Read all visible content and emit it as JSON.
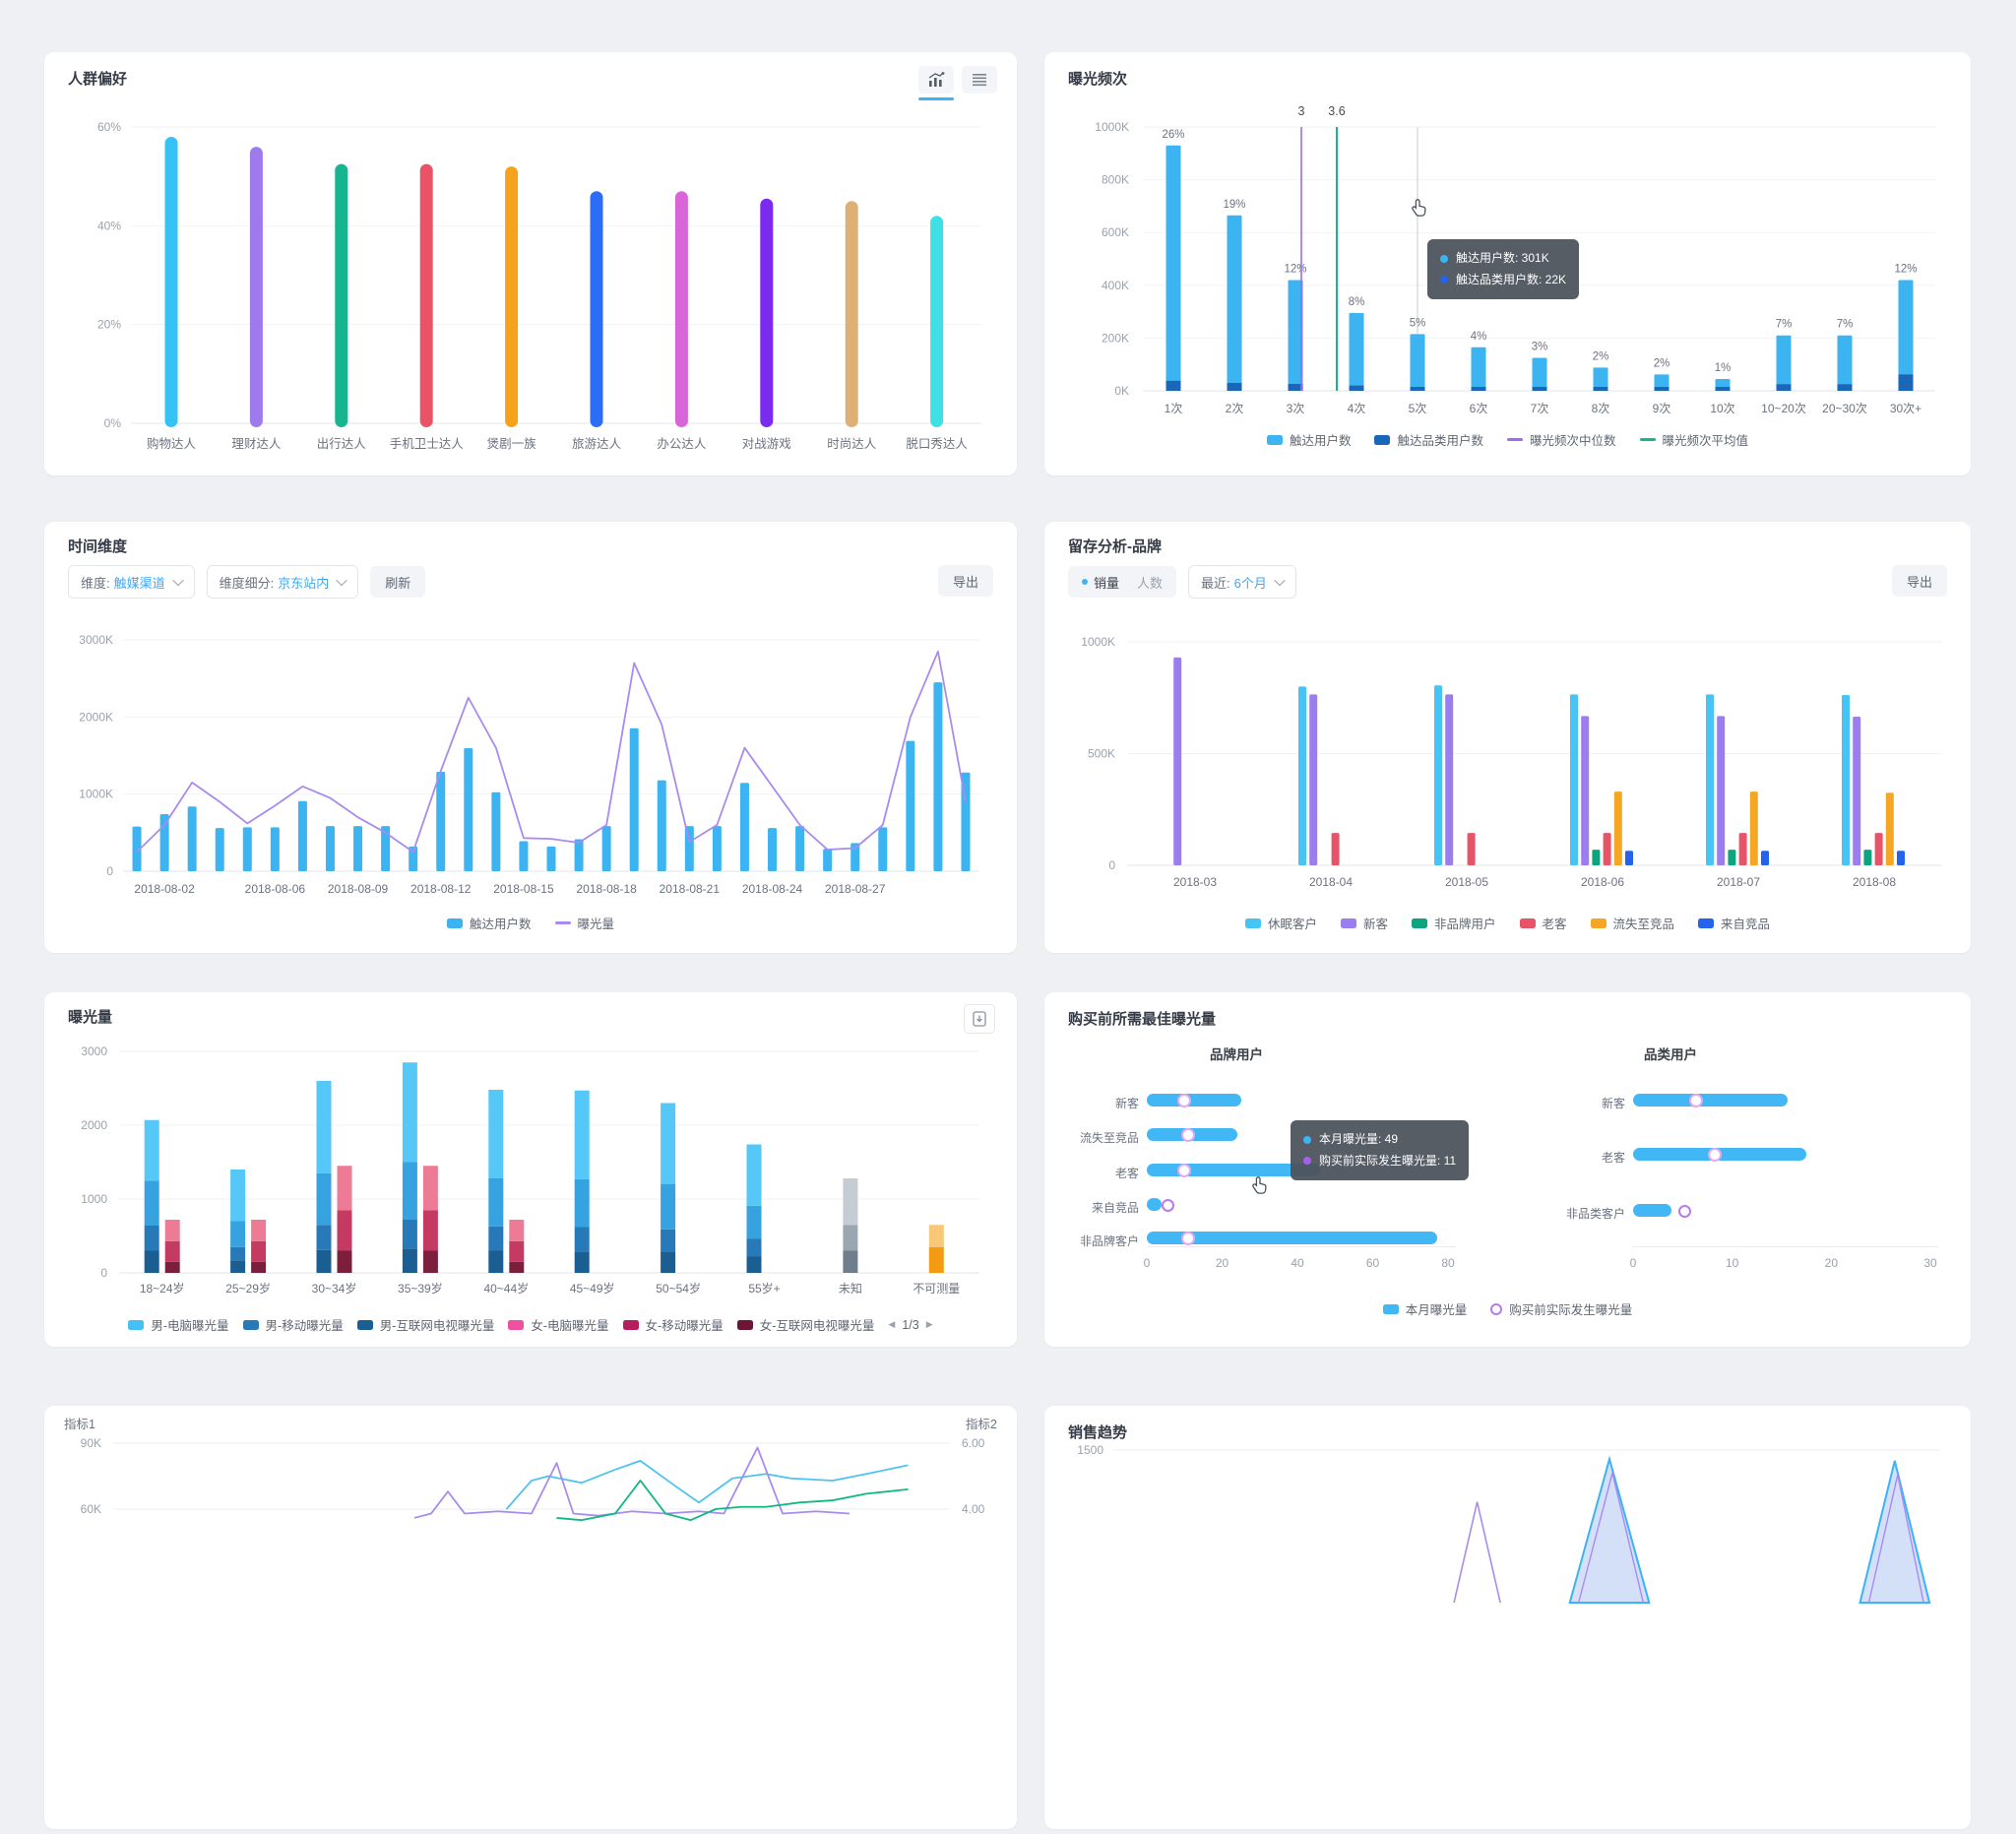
{
  "window": {
    "background": "#eef0f4",
    "accent": "#3db4f2"
  },
  "cards": {
    "audience": {
      "title": "人群偏好",
      "toolbar": {
        "chart_view": "bar-chart-icon",
        "list_view": "list-icon",
        "active_view": "chart"
      },
      "chart_data": {
        "type": "bar",
        "title": "人群偏好",
        "categories": [
          "购物达人",
          "理财达人",
          "出行达人",
          "手机卫士达人",
          "煲剧一族",
          "旅游达人",
          "办公达人",
          "对战游戏",
          "时尚达人",
          "脱口秀达人"
        ],
        "values": [
          58,
          56,
          52.5,
          52.5,
          52,
          47,
          47,
          45.5,
          45,
          42
        ],
        "bar_colors": [
          "#35c3f5",
          "#9d7bed",
          "#16b58f",
          "#ea5365",
          "#f5a31d",
          "#2b6ef5",
          "#d966d9",
          "#7b2bf0",
          "#ddb077",
          "#3ee0e6"
        ],
        "yticks": [
          {
            "v": 60,
            "label": "60%"
          },
          {
            "v": 40,
            "label": "40%"
          },
          {
            "v": 20,
            "label": "20%"
          },
          {
            "v": 0,
            "label": "0%"
          }
        ],
        "ylim": [
          0,
          60
        ]
      }
    },
    "frequency": {
      "title": "曝光频次",
      "chart_data": {
        "type": "bar",
        "title": "曝光频次",
        "categories": [
          "1次",
          "2次",
          "3次",
          "4次",
          "5次",
          "6次",
          "7次",
          "8次",
          "9次",
          "10次",
          "10~20次",
          "20~30次",
          "30次+"
        ],
        "series": [
          {
            "name": "触达用户数",
            "color": "#3db4f2",
            "values": [
              930,
              665,
              420,
              295,
              215,
              165,
              125,
              88,
              62,
              45,
              210,
              210,
              420
            ]
          },
          {
            "name": "触达品类用户数",
            "color": "#1a66b8",
            "values": [
              38,
              30,
              26,
              20,
              15,
              13,
              10,
              8,
              6,
              5,
              25,
              25,
              62
            ]
          }
        ],
        "bar_labels": [
          "26%",
          "19%",
          "12%",
          "8%",
          "5%",
          "4%",
          "3%",
          "2%",
          "2%",
          "1%",
          "7%",
          "7%",
          "12%"
        ],
        "median_line": {
          "name": "曝光频次中位数",
          "label": "3",
          "color": "#9b6df2"
        },
        "average_line": {
          "name": "曝光频次平均值",
          "label": "3.6",
          "color": "#10b98c"
        },
        "yticks": [
          {
            "v": 1000,
            "label": "1000K"
          },
          {
            "v": 800,
            "label": "800K"
          },
          {
            "v": 600,
            "label": "600K"
          },
          {
            "v": 400,
            "label": "400K"
          },
          {
            "v": 200,
            "label": "200K"
          },
          {
            "v": 0,
            "label": "0K"
          }
        ],
        "ylim": [
          0,
          1000
        ],
        "legend_position": "bottom"
      },
      "tooltip": {
        "rows": [
          {
            "dot_color": "#3db4f2",
            "text": "触达用户数: 301K"
          },
          {
            "dot_color": "#2563eb",
            "text": "触达品类用户数: 22K"
          }
        ]
      }
    },
    "time_dimension": {
      "title": "时间维度",
      "filters": {
        "dimension_label": "维度:",
        "dimension_value": "触媒渠道",
        "segment_label": "维度细分:",
        "segment_value": "京东站内",
        "refresh_label": "刷新",
        "export_label": "导出"
      },
      "chart_data": {
        "type": "bar+line",
        "title": "时间维度",
        "x_tick_labels": [
          "2018-08-02",
          "2018-08-06",
          "2018-08-09",
          "2018-08-12",
          "2018-08-15",
          "2018-08-18",
          "2018-08-21",
          "2018-08-24",
          "2018-08-27"
        ],
        "x_tick_positions": [
          1,
          5,
          8,
          11,
          14,
          17,
          20,
          23,
          26
        ],
        "bars": {
          "name": "触达用户数",
          "color": "#3db4f2",
          "values": [
            580,
            740,
            840,
            560,
            570,
            570,
            910,
            585,
            585,
            585,
            320,
            1290,
            1595,
            1025,
            390,
            320,
            415,
            585,
            1855,
            1180,
            585,
            585,
            1145,
            560,
            585,
            290,
            365,
            570,
            1690,
            2450,
            1280
          ]
        },
        "line": {
          "name": "曝光量",
          "color": "#a98bef",
          "values": [
            250,
            600,
            1150,
            900,
            620,
            850,
            1100,
            950,
            700,
            500,
            250,
            1300,
            2250,
            1600,
            430,
            420,
            370,
            600,
            2700,
            1900,
            380,
            600,
            1600,
            1100,
            600,
            280,
            300,
            600,
            2000,
            2850,
            900
          ]
        },
        "yticks": [
          {
            "v": 3000,
            "label": "3000K"
          },
          {
            "v": 2000,
            "label": "2000K"
          },
          {
            "v": 1000,
            "label": "1000K"
          },
          {
            "v": 0,
            "label": "0"
          }
        ],
        "ylim": [
          0,
          3000
        ]
      }
    },
    "retention": {
      "title": "留存分析-品牌",
      "controls": {
        "metric_options": [
          "销量",
          "人数"
        ],
        "metric_selected": "销量",
        "range_label": "最近:",
        "range_value": "6个月",
        "export_label": "导出"
      },
      "chart_data": {
        "type": "grouped-bar",
        "title": "留存分析-品牌",
        "categories": [
          "2018-03",
          "2018-04",
          "2018-05",
          "2018-06",
          "2018-07",
          "2018-08"
        ],
        "series": [
          {
            "name": "休眠客户",
            "color": "#45c4f5",
            "values": [
              0,
              800,
              805,
              765,
              765,
              762
            ]
          },
          {
            "name": "新客",
            "color": "#9b7df0",
            "values": [
              930,
              765,
              765,
              668,
              668,
              665
            ]
          },
          {
            "name": "非品牌用户",
            "color": "#0ea47e",
            "values": [
              0,
              0,
              0,
              70,
              70,
              70
            ]
          },
          {
            "name": "老客",
            "color": "#e85467",
            "values": [
              0,
              145,
              145,
              145,
              145,
              145
            ]
          },
          {
            "name": "流失至竞品",
            "color": "#f5a623",
            "values": [
              0,
              0,
              0,
              330,
              330,
              325
            ]
          },
          {
            "name": "来自竞品",
            "color": "#2563eb",
            "values": [
              0,
              0,
              0,
              65,
              65,
              65
            ]
          }
        ],
        "yticks": [
          {
            "v": 1000,
            "label": "1000K"
          },
          {
            "v": 500,
            "label": "500K"
          },
          {
            "v": 0,
            "label": "0"
          }
        ],
        "ylim": [
          0,
          1000
        ]
      }
    },
    "exposure": {
      "title": "曝光量",
      "toolbar": {
        "export_icon": "download-icon"
      },
      "chart_data": {
        "type": "stacked-bar",
        "title": "曝光量",
        "yticks": [
          {
            "v": 3000,
            "label": "3000"
          },
          {
            "v": 2000,
            "label": "2000"
          },
          {
            "v": 1000,
            "label": "1000"
          },
          {
            "v": 0,
            "label": "0"
          }
        ],
        "ylim": [
          0,
          3000
        ],
        "male_colors": [
          "#1b5e92",
          "#2779b8",
          "#36a3e0",
          "#55c8f7"
        ],
        "female_colors": [
          "#7c1f3d",
          "#c43a62",
          "#ee7b95"
        ],
        "gray_colors": [
          "#6f7d8c",
          "#9aa7b1",
          "#c5ccd3"
        ],
        "orange_colors": [
          "#f39c12",
          "#f8c878"
        ],
        "groups": [
          {
            "label": "18~24岁",
            "male": [
              300,
              340,
              610,
              820
            ],
            "female": [
              150,
              280,
              290
            ]
          },
          {
            "label": "25~29岁",
            "male": [
              170,
              180,
              350,
              700
            ],
            "female": [
              150,
              280,
              290
            ]
          },
          {
            "label": "30~34岁",
            "male": [
              310,
              340,
              700,
              1250
            ],
            "female": [
              300,
              550,
              600
            ]
          },
          {
            "label": "35~39岁",
            "male": [
              330,
              390,
              780,
              1350
            ],
            "female": [
              300,
              550,
              600
            ]
          },
          {
            "label": "40~44岁",
            "male": [
              300,
              330,
              650,
              1200
            ],
            "female": [
              150,
              280,
              290
            ]
          },
          {
            "label": "45~49岁",
            "male": [
              290,
              330,
              650,
              1200
            ],
            "female": []
          },
          {
            "label": "50~54岁",
            "male": [
              280,
              310,
              610,
              1100
            ],
            "female": []
          },
          {
            "label": "55岁+",
            "male": [
              220,
              240,
              450,
              830
            ],
            "female": []
          },
          {
            "label": "未知",
            "special": "gray",
            "segments": [
              300,
              350,
              630
            ]
          },
          {
            "label": "不可测量",
            "special": "orange",
            "segments": [
              350,
              300
            ]
          }
        ]
      },
      "legend": {
        "items": [
          {
            "label": "男-电脑曝光量",
            "color": "#45c0f5"
          },
          {
            "label": "男-移动曝光量",
            "color": "#2779b8"
          },
          {
            "label": "男-互联网电视曝光量",
            "color": "#1b5e92"
          },
          {
            "label": "女-电脑曝光量",
            "color": "#f0509e"
          },
          {
            "label": "女-移动曝光量",
            "color": "#b51d5e"
          },
          {
            "label": "女-互联网电视曝光量",
            "color": "#6e1436"
          }
        ],
        "pagination": {
          "prev": "◀",
          "label": "1/3",
          "next": "▶"
        }
      }
    },
    "best_exposure": {
      "title": "购买前所需最佳曝光量",
      "chart_data": {
        "type": "bar",
        "title": "购买前所需最佳曝光量",
        "panels": [
          {
            "title": "品牌用户",
            "xmax": 80,
            "xticks": [
              "0",
              "20",
              "40",
              "60",
              "80"
            ],
            "rows": [
              {
                "label": "新客",
                "bar": 25,
                "dot": 10
              },
              {
                "label": "流失至竞品",
                "bar": 24,
                "dot": 11
              },
              {
                "label": "老客",
                "bar": 46,
                "dot": 10,
                "track": true
              },
              {
                "label": "来自竞品",
                "bar": 4,
                "ring": 5.5
              },
              {
                "label": "非品牌客户",
                "bar": 77,
                "dot": 11
              }
            ]
          },
          {
            "title": "品类用户",
            "xmax": 30,
            "xticks": [
              "0",
              "10",
              "20",
              "30"
            ],
            "rows": [
              {
                "label": "新客",
                "bar": 15.6,
                "dot": 6.4
              },
              {
                "label": "老客",
                "bar": 17.5,
                "dot": 8.2
              },
              {
                "label": "非品类客户",
                "bar": 3.9,
                "ring": 5.2
              }
            ]
          }
        ]
      },
      "tooltip": {
        "rows": [
          {
            "dot_color": "#3db4f2",
            "text": "本月曝光量: 49"
          },
          {
            "dot_color": "#a55ff0",
            "text": "购买前实际发生曝光量: 11"
          }
        ]
      },
      "legend": {
        "bar_label": "本月曝光量",
        "bar_color": "#41b8f5",
        "ring_label": "购买前实际发生曝光量",
        "ring_color": "#b87af0"
      }
    },
    "metrics": {
      "title_left": "指标1",
      "title_right": "指标2",
      "chart_data": {
        "type": "line",
        "left_yticks": [
          {
            "v": 90,
            "label": "90K"
          },
          {
            "v": 60,
            "label": "60K"
          }
        ],
        "right_yticks": [
          {
            "v": 6,
            "label": "6.00"
          },
          {
            "v": 4,
            "label": "4.00"
          }
        ],
        "view": {
          "top_value": 90,
          "bottom_value": 60
        },
        "series": [
          {
            "name": "metric-blue",
            "color": "#4cc3f0",
            "points": [
              [
                0.47,
                60
              ],
              [
                0.5,
                73
              ],
              [
                0.52,
                75
              ],
              [
                0.56,
                72
              ],
              [
                0.6,
                78
              ],
              [
                0.63,
                82
              ],
              [
                0.67,
                71
              ],
              [
                0.7,
                63
              ],
              [
                0.74,
                74
              ],
              [
                0.78,
                76
              ],
              [
                0.81,
                74
              ],
              [
                0.86,
                73
              ],
              [
                0.9,
                76
              ],
              [
                0.95,
                80
              ]
            ]
          },
          {
            "name": "metric-purple",
            "color": "#a98bef",
            "points": [
              [
                0.36,
                56
              ],
              [
                0.38,
                58
              ],
              [
                0.4,
                68
              ],
              [
                0.42,
                58
              ],
              [
                0.46,
                59
              ],
              [
                0.5,
                58
              ],
              [
                0.53,
                81
              ],
              [
                0.55,
                58
              ],
              [
                0.58,
                57
              ],
              [
                0.62,
                59
              ],
              [
                0.66,
                58
              ],
              [
                0.7,
                59
              ],
              [
                0.73,
                58
              ],
              [
                0.77,
                88
              ],
              [
                0.8,
                58
              ],
              [
                0.84,
                59
              ],
              [
                0.88,
                58
              ]
            ]
          },
          {
            "name": "metric-green",
            "color": "#10b981",
            "points": [
              [
                0.53,
                56
              ],
              [
                0.56,
                55
              ],
              [
                0.6,
                58
              ],
              [
                0.63,
                73
              ],
              [
                0.66,
                58
              ],
              [
                0.69,
                55
              ],
              [
                0.72,
                60
              ],
              [
                0.75,
                61
              ],
              [
                0.78,
                61
              ],
              [
                0.82,
                63
              ],
              [
                0.86,
                64
              ],
              [
                0.9,
                67
              ],
              [
                0.95,
                69
              ]
            ]
          }
        ]
      }
    },
    "sales_trend": {
      "title": "销售趋势",
      "chart_data": {
        "type": "area",
        "yticks": [
          {
            "v": 1500,
            "label": "1500"
          }
        ],
        "peaks": [
          {
            "kind": "purple-spike",
            "center": 0.44,
            "tip": 1210,
            "half_width": 0.028
          },
          {
            "kind": "blue-area",
            "center": 0.6,
            "tip": 1450,
            "half_width": 0.048
          },
          {
            "kind": "blue-area",
            "center": 0.945,
            "tip": 1440,
            "half_width": 0.042
          }
        ],
        "colors": {
          "blue_stroke": "#3bb3f5",
          "blue_fill": "#c9d8f6",
          "purple_stroke": "#a98bef"
        }
      }
    }
  }
}
